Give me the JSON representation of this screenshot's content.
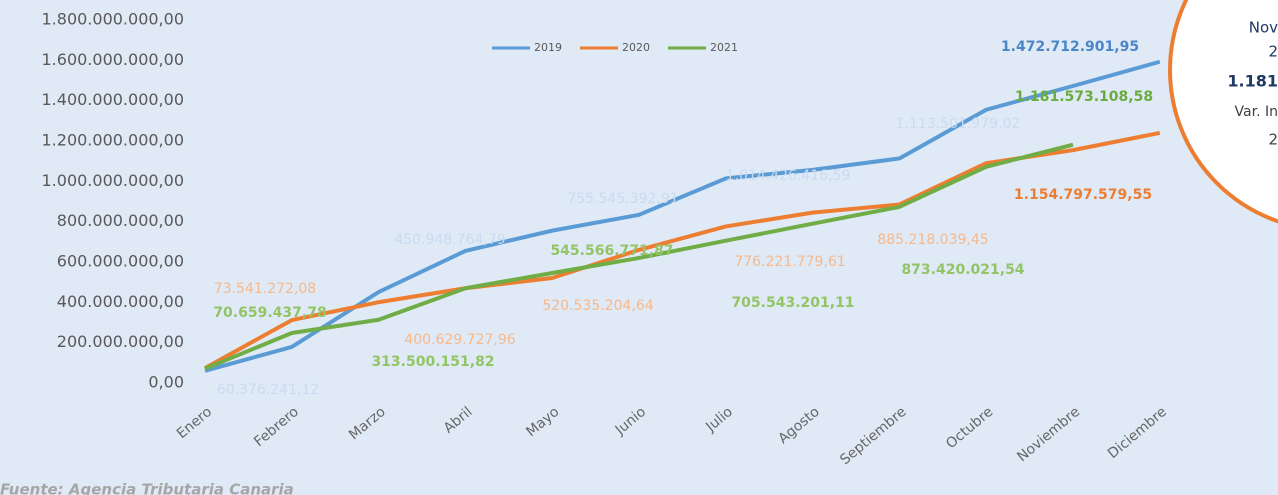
{
  "chart_data": {
    "type": "line",
    "categories": [
      "Enero",
      "Febrero",
      "Marzo",
      "Abril",
      "Mayo",
      "Junio",
      "Julio",
      "Agosto",
      "Septiembre",
      "Octubre",
      "Noviembre",
      "Diciembre"
    ],
    "series": [
      {
        "name": "2019",
        "color": "#5b9bd5",
        "values": [
          60376241.12,
          179000000,
          450948764.79,
          655000000,
          755545392.91,
          834000000,
          1014426416.59,
          1057000000,
          1113501979.02,
          1355000000,
          1472712901.95,
          1593000000
        ],
        "value_labels": [
          "60.376.241,12",
          null,
          "450.948.764,79",
          null,
          "755.545.392,91",
          null,
          "1.014.426.416,59",
          null,
          "1.113.501.979,02",
          null,
          "1.472.712.901,95",
          null
        ]
      },
      {
        "name": "2020",
        "color": "#ed7d31",
        "values": [
          73541272.08,
          312000000,
          400629727.96,
          470000000,
          520535204.64,
          660000000,
          776221779.61,
          845000000,
          885218039.45,
          1090000000,
          1154797579.55,
          1240000000
        ],
        "value_labels": [
          "73.541.272,08",
          null,
          "400.629.727,96",
          null,
          "520.535.204,64",
          null,
          "776.221.779,61",
          null,
          "885.218.039,45",
          null,
          "1.154.797.579,55",
          null
        ]
      },
      {
        "name": "2021",
        "color": "#70ad47",
        "values": [
          70659437.78,
          248000000,
          313500151.82,
          470000000,
          545566771.87,
          620000000,
          705543201.11,
          790000000,
          873420021.54,
          1072000000,
          1181573108.58,
          null
        ],
        "value_labels": [
          "70.659.437,78",
          null,
          "313.500.151,82",
          null,
          "545.566.771,87",
          null,
          "705.543.201,11",
          null,
          "873.420.021,54",
          null,
          "1.181.573.108,58",
          null
        ]
      }
    ],
    "ylim": [
      0,
      1800000000
    ],
    "yticks": [
      {
        "value": 0,
        "label": "0,00"
      },
      {
        "value": 200000000,
        "label": "200.000.000,00"
      },
      {
        "value": 400000000,
        "label": "400.000.000,00"
      },
      {
        "value": 600000000,
        "label": "600.000.000,00"
      },
      {
        "value": 800000000,
        "label": "800.000.000,00"
      },
      {
        "value": 1000000000,
        "label": "1.000.000.000,00"
      },
      {
        "value": 1200000000,
        "label": "1.200.000.000,00"
      },
      {
        "value": 1400000000,
        "label": "1.400.000.000,00"
      },
      {
        "value": 1600000000,
        "label": "1.600.000.000,00"
      },
      {
        "value": 1800000000,
        "label": "1.800.000.000,00"
      }
    ],
    "legend": "top",
    "annotations": [
      "Nov",
      "2",
      "1.181",
      "Var. In",
      "2"
    ],
    "source": "Fuente: Agencia Tributaria Canaria"
  }
}
